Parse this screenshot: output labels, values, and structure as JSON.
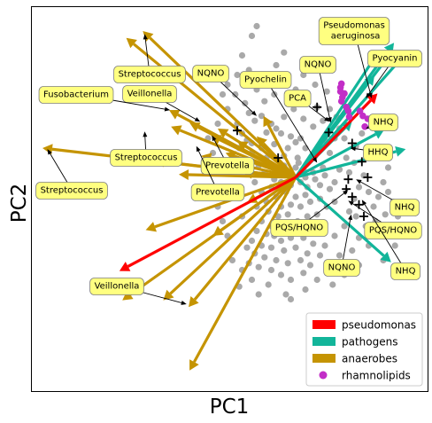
{
  "chart_data": {
    "type": "scatter",
    "xlabel": "PC1",
    "ylabel": "PC2",
    "ticks": "none",
    "center": [
      0,
      0
    ],
    "legend": {
      "placement": "bottom-right",
      "entries": [
        {
          "label": "pseudomonas",
          "color": "#ff0000",
          "marker": "patch"
        },
        {
          "label": "pathogens",
          "color": "#12b59a",
          "marker": "patch"
        },
        {
          "label": "anaerobes",
          "color": "#c59402",
          "marker": "patch"
        },
        {
          "label": "rhamnolipids",
          "color": "#c22ec7",
          "marker": "dot"
        }
      ]
    },
    "colors": {
      "pseudomonas": "#ff0000",
      "pathogens": "#12b59a",
      "anaerobes": "#c59402",
      "rhamnolipids": "#c22ec7",
      "samples": "#a9a9a9",
      "label_fill": "#ffff80",
      "label_edge": "#7f7f7f"
    },
    "loadings": {
      "pseudomonas": [
        [
          0.84,
          0.86
        ],
        [
          -1.81,
          -0.96
        ]
      ],
      "pathogens": [
        [
          1.13,
          1.27
        ],
        [
          1.01,
          1.38
        ],
        [
          0.96,
          1.25
        ],
        [
          0.86,
          1.3
        ],
        [
          0.81,
          1.05
        ],
        [
          1.13,
          0.29
        ],
        [
          0.91,
          0.49
        ],
        [
          0.98,
          -0.87
        ],
        [
          0.58,
          0.58
        ]
      ],
      "anaerobes": [
        [
          -1.74,
          1.43
        ],
        [
          -1.57,
          1.5
        ],
        [
          -1.3,
          0.69
        ],
        [
          -1.45,
          0.17
        ],
        [
          -2.6,
          0.3
        ],
        [
          -1.28,
          0.52
        ],
        [
          -1.09,
          0.56
        ],
        [
          -0.97,
          0.22
        ],
        [
          -1.2,
          0.03
        ],
        [
          -0.87,
          0.43
        ],
        [
          -0.72,
          0.25
        ],
        [
          -0.33,
          0.63
        ],
        [
          -0.4,
          0.42
        ],
        [
          -1.54,
          -0.54
        ],
        [
          -1.78,
          -1.26
        ],
        [
          -1.36,
          -1.26
        ],
        [
          -1.1,
          -1.33
        ],
        [
          -1.09,
          -1.98
        ],
        [
          -0.85,
          -0.6
        ],
        [
          -0.5,
          -0.26
        ],
        [
          -0.55,
          0.05
        ],
        [
          -0.6,
          0.37
        ],
        [
          -0.8,
          0.5
        ]
      ]
    },
    "rhamnolipids": [
      [
        0.46,
        0.92
      ],
      [
        0.47,
        0.96
      ],
      [
        0.46,
        0.88
      ],
      [
        0.5,
        0.86
      ],
      [
        0.48,
        0.82
      ],
      [
        0.47,
        0.78
      ],
      [
        0.52,
        0.72
      ],
      [
        0.54,
        0.68
      ],
      [
        0.66,
        0.68
      ],
      [
        0.69,
        0.63
      ],
      [
        0.71,
        0.52
      ],
      [
        0.74,
        0.6
      ],
      [
        0.55,
        0.62
      ]
    ],
    "sample_points": [
      [
        -0.4,
        1.55
      ],
      [
        -0.45,
        1.45
      ],
      [
        -0.55,
        1.25
      ],
      [
        -0.7,
        0.95
      ],
      [
        -0.62,
        0.85
      ],
      [
        -0.52,
        0.76
      ],
      [
        -0.48,
        0.66
      ],
      [
        -0.42,
        0.58
      ],
      [
        -0.35,
        0.63
      ],
      [
        -0.25,
        0.55
      ],
      [
        -0.2,
        0.5
      ],
      [
        -0.15,
        0.45
      ],
      [
        -0.3,
        0.46
      ],
      [
        -0.05,
        0.42
      ],
      [
        0.0,
        0.36
      ],
      [
        0.05,
        0.4
      ],
      [
        0.1,
        0.3
      ],
      [
        -0.08,
        0.3
      ],
      [
        -0.12,
        0.22
      ],
      [
        0.02,
        0.2
      ],
      [
        0.15,
        0.18
      ],
      [
        0.2,
        0.22
      ],
      [
        0.25,
        0.3
      ],
      [
        0.3,
        0.38
      ],
      [
        0.35,
        0.25
      ],
      [
        0.4,
        0.4
      ],
      [
        0.45,
        0.5
      ],
      [
        -0.22,
        0.34
      ],
      [
        -0.3,
        0.2
      ],
      [
        -0.38,
        0.12
      ],
      [
        -0.2,
        0.1
      ],
      [
        -0.1,
        0.06
      ],
      [
        0.08,
        0.08
      ],
      [
        0.18,
        0.05
      ],
      [
        0.28,
        0.1
      ],
      [
        -0.45,
        0.25
      ],
      [
        -0.5,
        0.38
      ],
      [
        -0.58,
        0.3
      ],
      [
        -0.65,
        0.2
      ],
      [
        -0.15,
        -0.05
      ],
      [
        -0.05,
        -0.08
      ],
      [
        0.05,
        -0.05
      ],
      [
        0.12,
        -0.1
      ],
      [
        0.25,
        -0.08
      ],
      [
        0.35,
        -0.12
      ],
      [
        0.4,
        -0.05
      ],
      [
        -0.25,
        -0.1
      ],
      [
        -0.35,
        -0.15
      ],
      [
        -0.42,
        -0.05
      ],
      [
        -0.1,
        -0.15
      ],
      [
        0.0,
        -0.2
      ],
      [
        0.1,
        -0.18
      ],
      [
        -0.2,
        -0.2
      ],
      [
        -0.3,
        -0.25
      ],
      [
        -0.15,
        -0.3
      ],
      [
        -0.05,
        -0.28
      ],
      [
        0.05,
        -0.3
      ],
      [
        0.15,
        -0.25
      ],
      [
        0.25,
        -0.22
      ],
      [
        0.32,
        -0.3
      ],
      [
        -0.28,
        -0.35
      ],
      [
        -0.18,
        -0.4
      ],
      [
        -0.08,
        -0.38
      ],
      [
        0.02,
        -0.45
      ],
      [
        0.12,
        -0.4
      ],
      [
        0.22,
        -0.38
      ],
      [
        -0.4,
        -0.3
      ],
      [
        -0.35,
        -0.45
      ],
      [
        -0.25,
        -0.5
      ],
      [
        -0.12,
        -0.52
      ],
      [
        0.0,
        -0.55
      ],
      [
        0.1,
        -0.5
      ],
      [
        0.2,
        -0.55
      ],
      [
        0.3,
        -0.48
      ],
      [
        -0.05,
        -0.62
      ],
      [
        -0.15,
        -0.65
      ],
      [
        0.08,
        -0.62
      ],
      [
        0.18,
        -0.68
      ],
      [
        -0.22,
        -0.6
      ],
      [
        -0.3,
        -0.58
      ],
      [
        -0.4,
        -0.55
      ],
      [
        -0.45,
        -0.65
      ],
      [
        -0.35,
        -0.7
      ],
      [
        -0.25,
        -0.72
      ],
      [
        -0.12,
        -0.75
      ],
      [
        0.0,
        -0.72
      ],
      [
        0.12,
        -0.78
      ],
      [
        -0.2,
        -0.85
      ],
      [
        -0.08,
        -0.88
      ],
      [
        0.05,
        -0.85
      ],
      [
        -0.32,
        -0.82
      ],
      [
        -0.42,
        -0.78
      ],
      [
        -0.5,
        -0.72
      ],
      [
        -0.48,
        -0.88
      ],
      [
        -0.38,
        -0.92
      ],
      [
        -0.25,
        -0.95
      ],
      [
        -0.15,
        -1.0
      ],
      [
        -0.05,
        -1.05
      ],
      [
        0.08,
        -0.98
      ],
      [
        0.15,
        -0.9
      ],
      [
        0.25,
        -0.8
      ],
      [
        0.3,
        -0.7
      ],
      [
        0.4,
        -0.6
      ],
      [
        0.5,
        -0.5
      ],
      [
        0.55,
        -0.35
      ],
      [
        0.6,
        -0.22
      ],
      [
        0.65,
        -0.1
      ],
      [
        0.7,
        0.02
      ],
      [
        0.75,
        -0.15
      ],
      [
        0.8,
        -0.3
      ],
      [
        0.85,
        -0.2
      ],
      [
        0.9,
        -0.05
      ],
      [
        0.95,
        0.1
      ],
      [
        0.88,
        0.2
      ],
      [
        0.78,
        0.3
      ],
      [
        0.62,
        0.32
      ],
      [
        0.52,
        0.2
      ],
      [
        0.45,
        0.08
      ],
      [
        0.55,
        0.05
      ],
      [
        0.62,
        -0.4
      ],
      [
        0.72,
        -0.5
      ],
      [
        0.82,
        -0.45
      ],
      [
        0.92,
        -0.38
      ],
      [
        1.0,
        -0.25
      ],
      [
        1.05,
        -0.4
      ],
      [
        0.75,
        -0.7
      ],
      [
        0.65,
        -0.62
      ],
      [
        0.58,
        -0.75
      ],
      [
        0.45,
        -0.8
      ],
      [
        0.35,
        -0.95
      ],
      [
        0.22,
        -1.05
      ],
      [
        0.1,
        -1.15
      ],
      [
        -0.1,
        -1.2
      ],
      [
        -0.28,
        -1.1
      ],
      [
        -0.45,
        -1.05
      ],
      [
        -0.55,
        -0.95
      ],
      [
        -0.65,
        -0.85
      ],
      [
        -0.7,
        -0.6
      ],
      [
        -0.75,
        -0.45
      ],
      [
        -0.8,
        -0.3
      ],
      [
        -0.72,
        -0.15
      ],
      [
        -0.68,
        0.05
      ],
      [
        -0.78,
        0.12
      ],
      [
        -0.85,
        0.25
      ],
      [
        -0.9,
        0.4
      ],
      [
        -0.8,
        0.55
      ],
      [
        -0.6,
        0.55
      ],
      [
        -0.7,
        0.7
      ],
      [
        -0.55,
        0.45
      ],
      [
        -0.45,
        0.35
      ],
      [
        -0.35,
        0.3
      ],
      [
        -0.12,
        0.62
      ],
      [
        -0.02,
        0.7
      ],
      [
        0.08,
        0.6
      ],
      [
        0.18,
        0.52
      ],
      [
        0.28,
        0.58
      ],
      [
        0.22,
        0.72
      ],
      [
        0.12,
        0.8
      ],
      [
        0.0,
        0.9
      ],
      [
        -0.1,
        0.95
      ],
      [
        -0.22,
        0.85
      ],
      [
        -0.32,
        0.78
      ],
      [
        -0.4,
        0.9
      ],
      [
        -0.3,
        1.05
      ],
      [
        -0.2,
        1.15
      ],
      [
        -0.12,
        1.28
      ],
      [
        0.35,
        0.7
      ],
      [
        0.5,
        0.4
      ],
      [
        0.6,
        0.15
      ],
      [
        0.4,
        -0.25
      ],
      [
        -0.6,
        -0.2
      ],
      [
        -0.55,
        -0.4
      ],
      [
        -0.62,
        0.15
      ],
      [
        0.0,
        0.1
      ],
      [
        0.1,
        0.0
      ],
      [
        -0.05,
        0.0
      ],
      [
        0.03,
        0.15
      ],
      [
        -0.12,
        0.12
      ],
      [
        0.2,
        -0.02
      ],
      [
        0.3,
        0.02
      ],
      [
        -0.32,
        0.05
      ],
      [
        -0.22,
        -0.02
      ],
      [
        1.1,
        -0.55
      ],
      [
        1.02,
        -0.7
      ],
      [
        0.9,
        -0.85
      ],
      [
        0.95,
        -0.15
      ],
      [
        0.68,
        0.45
      ],
      [
        0.42,
        0.62
      ],
      [
        0.32,
        0.88
      ],
      [
        0.2,
        0.95
      ],
      [
        0.08,
        1.05
      ],
      [
        -0.48,
        1.1
      ],
      [
        -0.6,
        1.05
      ],
      [
        -0.75,
        0.85
      ],
      [
        0.5,
        -1.0
      ],
      [
        0.38,
        -1.1
      ],
      [
        -0.05,
        -1.25
      ],
      [
        -0.38,
        -1.2
      ],
      [
        -0.58,
        -1.12
      ],
      [
        0.65,
        -0.9
      ]
    ],
    "cross_markers": [
      [
        0.22,
        0.72
      ],
      [
        -0.18,
        0.2
      ],
      [
        -0.6,
        0.48
      ],
      [
        0.34,
        0.46
      ],
      [
        0.58,
        0.35
      ],
      [
        0.8,
        0.25
      ],
      [
        0.68,
        0.16
      ],
      [
        0.74,
        0.0
      ],
      [
        0.54,
        -0.02
      ],
      [
        0.52,
        -0.12
      ],
      [
        0.58,
        -0.2
      ],
      [
        0.65,
        -0.28
      ],
      [
        0.7,
        -0.4
      ]
    ]
  },
  "annotations": [
    {
      "text": "Pseudomonas\n  aeruginosa",
      "target": [
        0.78,
        0.81
      ]
    },
    {
      "text": "NQNO",
      "target": [
        0.36,
        0.56
      ]
    },
    {
      "text": "Pyocyanin",
      "target": [
        0.72,
        0.81
      ]
    },
    {
      "text": "NQNO",
      "target": [
        -0.4,
        0.63
      ]
    },
    {
      "text": "Pyochelin",
      "target": [
        0.22,
        0.15
      ]
    },
    {
      "text": "PCA",
      "target": [
        0.35,
        0.57
      ]
    },
    {
      "text": "NHQ",
      "target": [
        0.72,
        0.5
      ]
    },
    {
      "text": "HHQ",
      "target": [
        0.56,
        0.3
      ]
    },
    {
      "text": "Streptococcus",
      "target": [
        -1.55,
        1.47
      ]
    },
    {
      "text": "Veillonella",
      "target": [
        -0.98,
        0.57
      ]
    },
    {
      "text": "Fusobacterium",
      "target": [
        -1.29,
        0.69
      ]
    },
    {
      "text": "Prevotella",
      "target": [
        -0.86,
        0.43
      ]
    },
    {
      "text": "Streptococcus",
      "target": [
        -1.55,
        0.47
      ]
    },
    {
      "text": "Streptococcus",
      "target": [
        -2.55,
        0.29
      ]
    },
    {
      "text": "Prevotella",
      "target": [
        -1.02,
        0.32
      ]
    },
    {
      "text": "NHQ",
      "target": [
        0.62,
        -0.02
      ]
    },
    {
      "text": "PQS/HQNO",
      "target": [
        0.54,
        -0.13
      ]
    },
    {
      "text": "PQS/HQNO",
      "target": [
        0.54,
        -0.24
      ]
    },
    {
      "text": "NQNO",
      "target": [
        0.57,
        -0.38
      ]
    },
    {
      "text": "NHQ",
      "target": [
        0.68,
        -0.23
      ]
    },
    {
      "text": "Veillonella",
      "target": [
        -1.12,
        -1.3
      ]
    }
  ]
}
